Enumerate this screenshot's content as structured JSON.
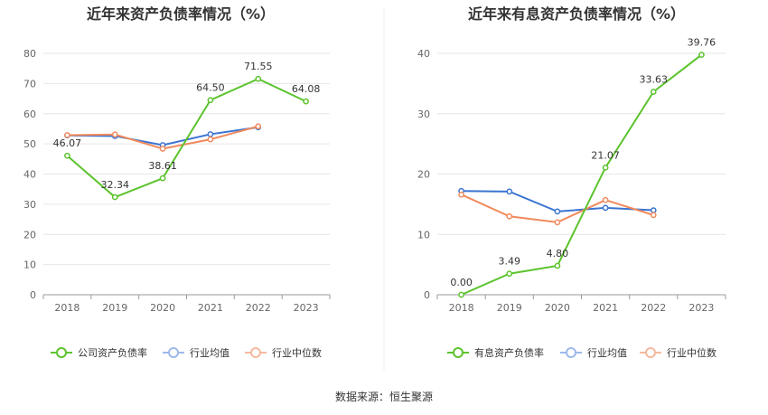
{
  "source": "数据来源：恒生聚源",
  "chart_data": [
    {
      "type": "line",
      "title": "近年来资产负债率情况（%）",
      "categories": [
        "2018",
        "2019",
        "2020",
        "2021",
        "2022",
        "2023"
      ],
      "ylim": [
        0,
        80
      ],
      "yticks": [
        "0",
        "10",
        "20",
        "30",
        "40",
        "50",
        "60",
        "70",
        "80"
      ],
      "grid": true,
      "legend_position": "bottom",
      "series": [
        {
          "name": "公司资产负债率",
          "color": "#5CC32E",
          "values": [
            46.07,
            32.34,
            38.61,
            64.5,
            71.55,
            64.08
          ],
          "labels": [
            "46.07",
            "32.34",
            "38.61",
            "64.50",
            "71.55",
            "64.08"
          ]
        },
        {
          "name": "行业均值",
          "color": "#3B74D1",
          "values": [
            52.8,
            52.6,
            49.6,
            53.2,
            55.5,
            null
          ]
        },
        {
          "name": "行业中位数",
          "color": "#F08A5D",
          "values": [
            52.9,
            53.1,
            48.4,
            51.5,
            55.8,
            null
          ]
        }
      ]
    },
    {
      "type": "line",
      "title": "近年来有息资产负债率情况（%）",
      "categories": [
        "2018",
        "2019",
        "2020",
        "2021",
        "2022",
        "2023"
      ],
      "ylim": [
        0,
        40
      ],
      "yticks": [
        "0",
        "10",
        "20",
        "30",
        "40"
      ],
      "grid": true,
      "legend_position": "bottom",
      "series": [
        {
          "name": "有息资产负债率",
          "color": "#5CC32E",
          "values": [
            0.0,
            3.49,
            4.8,
            21.07,
            33.63,
            39.76
          ],
          "labels": [
            "0.00",
            "3.49",
            "4.80",
            "21.07",
            "33.63",
            "39.76"
          ]
        },
        {
          "name": "行业均值",
          "color": "#3B74D1",
          "values": [
            17.2,
            17.1,
            13.8,
            14.4,
            14.0,
            null
          ]
        },
        {
          "name": "行业中位数",
          "color": "#F08A5D",
          "values": [
            16.6,
            13.0,
            12.0,
            15.7,
            13.2,
            null
          ]
        }
      ]
    }
  ]
}
